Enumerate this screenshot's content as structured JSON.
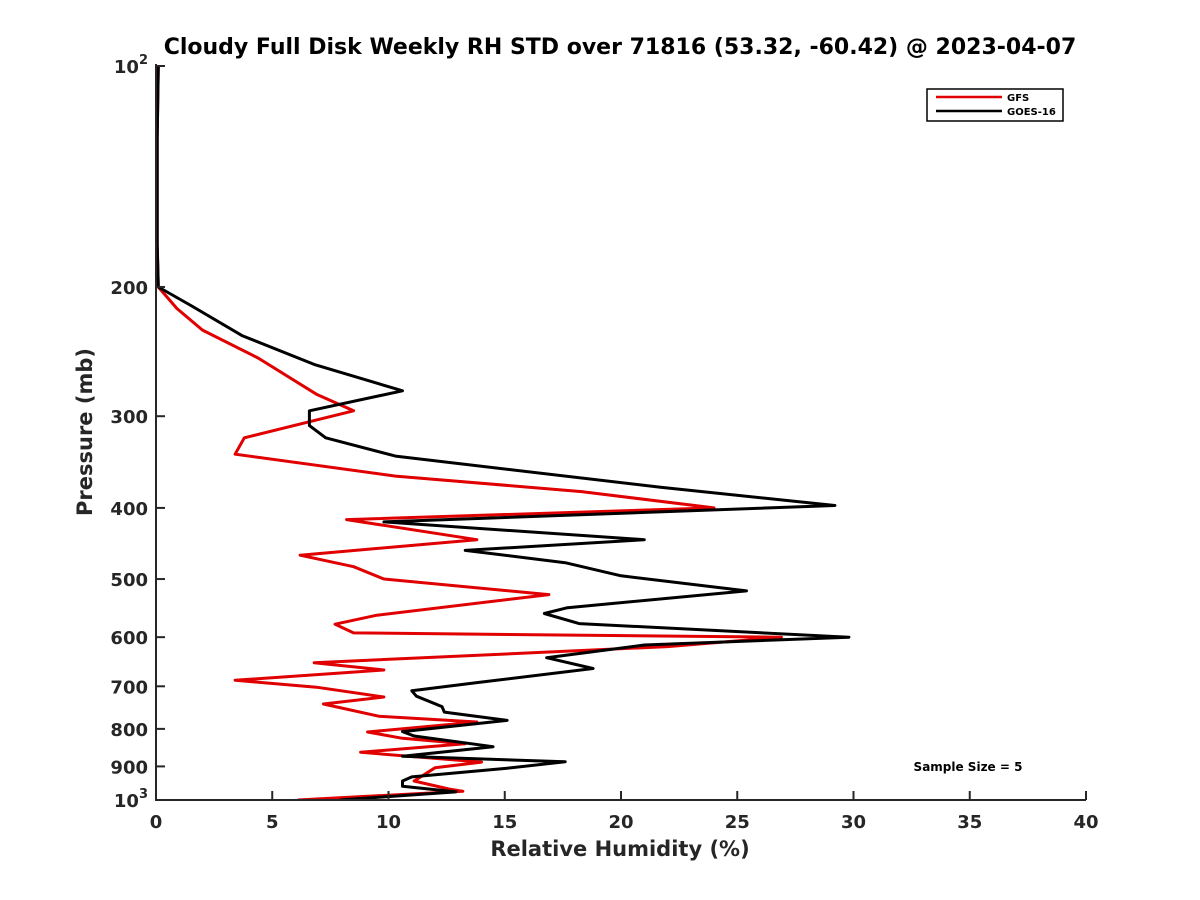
{
  "chart_data": {
    "type": "line",
    "title": "Cloudy Full Disk Weekly RH STD over 71816 (53.32, -60.42) @ 2023-04-07",
    "xlabel": "Relative Humidity (%)",
    "ylabel": "Pressure (mb)",
    "xlim": [
      0,
      40
    ],
    "ylim": [
      100,
      1000
    ],
    "y_scale": "log",
    "y_reversed": true,
    "x_ticks": [
      "0",
      "5",
      "10",
      "15",
      "20",
      "25",
      "30",
      "35",
      "40"
    ],
    "y_ticks": [
      {
        "value": 100,
        "label": "10",
        "sup": "2"
      },
      {
        "value": 200,
        "label": "200",
        "sup": ""
      },
      {
        "value": 300,
        "label": "300",
        "sup": ""
      },
      {
        "value": 400,
        "label": "400",
        "sup": ""
      },
      {
        "value": 500,
        "label": "500",
        "sup": ""
      },
      {
        "value": 600,
        "label": "600",
        "sup": ""
      },
      {
        "value": 700,
        "label": "700",
        "sup": ""
      },
      {
        "value": 800,
        "label": "800",
        "sup": ""
      },
      {
        "value": 900,
        "label": "900",
        "sup": ""
      },
      {
        "value": 1000,
        "label": "10",
        "sup": "3"
      }
    ],
    "grid": false,
    "legend_position": "top-right",
    "annotation": "Sample Size = 5",
    "series": [
      {
        "name": "GFS",
        "color": "#e00000",
        "points": [
          [
            0.1,
            100
          ],
          [
            0.05,
            125
          ],
          [
            0.05,
            150
          ],
          [
            0.05,
            175
          ],
          [
            0.1,
            200
          ],
          [
            0.9,
            214
          ],
          [
            2.0,
            229
          ],
          [
            4.4,
            250
          ],
          [
            6.9,
            280
          ],
          [
            8.5,
            295
          ],
          [
            3.8,
            321
          ],
          [
            3.4,
            338
          ],
          [
            10.3,
            362
          ],
          [
            18.3,
            380
          ],
          [
            24.0,
            400
          ],
          [
            8.2,
            415
          ],
          [
            13.8,
            442
          ],
          [
            6.2,
            464
          ],
          [
            8.5,
            481
          ],
          [
            9.8,
            500
          ],
          [
            16.9,
            525
          ],
          [
            9.5,
            560
          ],
          [
            7.7,
            576
          ],
          [
            8.5,
            592
          ],
          [
            26.9,
            600
          ],
          [
            22.0,
            618
          ],
          [
            6.8,
            650
          ],
          [
            9.8,
            665
          ],
          [
            3.4,
            687
          ],
          [
            6.9,
            702
          ],
          [
            9.8,
            724
          ],
          [
            7.2,
            740
          ],
          [
            9.6,
            769
          ],
          [
            13.8,
            783
          ],
          [
            9.1,
            808
          ],
          [
            10.6,
            824
          ],
          [
            13.3,
            838
          ],
          [
            8.8,
            861
          ],
          [
            14.0,
            888
          ],
          [
            12.0,
            904
          ],
          [
            11.1,
            942
          ],
          [
            12.6,
            966
          ],
          [
            13.2,
            973
          ],
          [
            6.1,
            1000
          ]
        ]
      },
      {
        "name": "GOES-16",
        "color": "#000000",
        "points": [
          [
            0.1,
            100
          ],
          [
            0.05,
            125
          ],
          [
            0.05,
            150
          ],
          [
            0.05,
            175
          ],
          [
            0.1,
            200
          ],
          [
            1.5,
            212
          ],
          [
            3.7,
            233
          ],
          [
            6.8,
            255
          ],
          [
            10.6,
            277
          ],
          [
            6.6,
            295
          ],
          [
            6.6,
            309
          ],
          [
            7.3,
            321
          ],
          [
            10.3,
            340
          ],
          [
            21.7,
            375
          ],
          [
            29.2,
            397
          ],
          [
            9.8,
            418
          ],
          [
            21.0,
            442
          ],
          [
            13.3,
            457
          ],
          [
            17.6,
            475
          ],
          [
            20.0,
            495
          ],
          [
            25.4,
            519
          ],
          [
            17.7,
            547
          ],
          [
            16.7,
            557
          ],
          [
            18.2,
            575
          ],
          [
            29.8,
            600
          ],
          [
            21.0,
            615
          ],
          [
            16.8,
            640
          ],
          [
            18.8,
            662
          ],
          [
            13.8,
            692
          ],
          [
            11.0,
            710
          ],
          [
            11.2,
            722
          ],
          [
            12.3,
            746
          ],
          [
            12.4,
            759
          ],
          [
            15.1,
            779
          ],
          [
            10.6,
            807
          ],
          [
            11.1,
            818
          ],
          [
            14.5,
            846
          ],
          [
            10.6,
            872
          ],
          [
            17.6,
            887
          ],
          [
            15.1,
            905
          ],
          [
            11.0,
            930
          ],
          [
            10.6,
            942
          ],
          [
            10.6,
            958
          ],
          [
            12.9,
            975
          ],
          [
            7.9,
            1000
          ]
        ]
      }
    ]
  }
}
